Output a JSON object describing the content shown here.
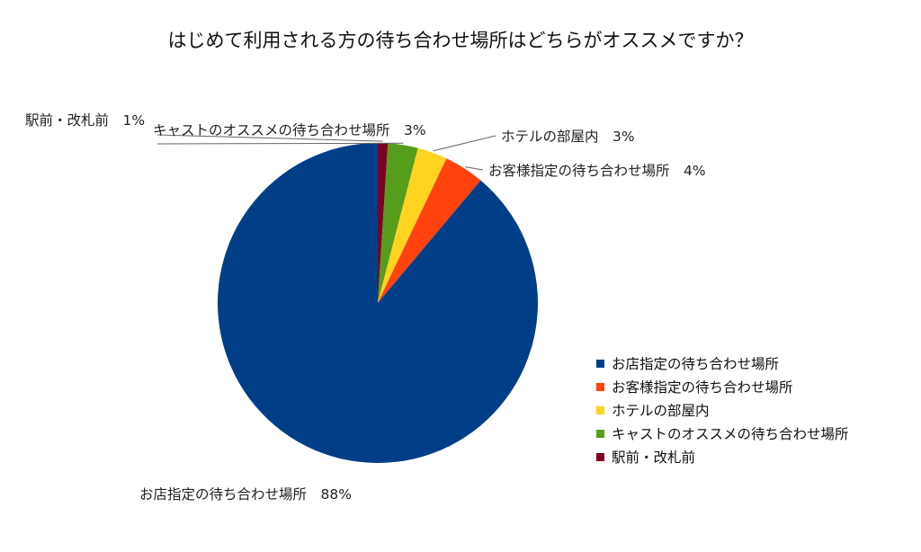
{
  "chart_data": {
    "type": "pie",
    "title": "はじめて利用される方の待ち合わせ場所はどちらがオススメですか？",
    "legend_position": "right",
    "slices": [
      {
        "label": "お店指定の待ち合わせ場所",
        "value": 88,
        "data_label": "お店指定の待ち合わせ場所　88%",
        "color": "#003f87"
      },
      {
        "label": "お客様指定の待ち合わせ場所",
        "value": 4,
        "data_label": "お客様指定の待ち合わせ場所　4%",
        "color": "#ff420e"
      },
      {
        "label": "ホテルの部屋内",
        "value": 3,
        "data_label": "ホテルの部屋内　3%",
        "color": "#ffd320"
      },
      {
        "label": "キャストのオススメの待ち合わせ場所",
        "value": 3,
        "data_label": "キャストのオススメの待ち合わせ場所　3%",
        "color": "#579d1c"
      },
      {
        "label": "駅前・改札前",
        "value": 1,
        "data_label": "駅前・改札前　1%",
        "color": "#7e0021"
      }
    ]
  }
}
